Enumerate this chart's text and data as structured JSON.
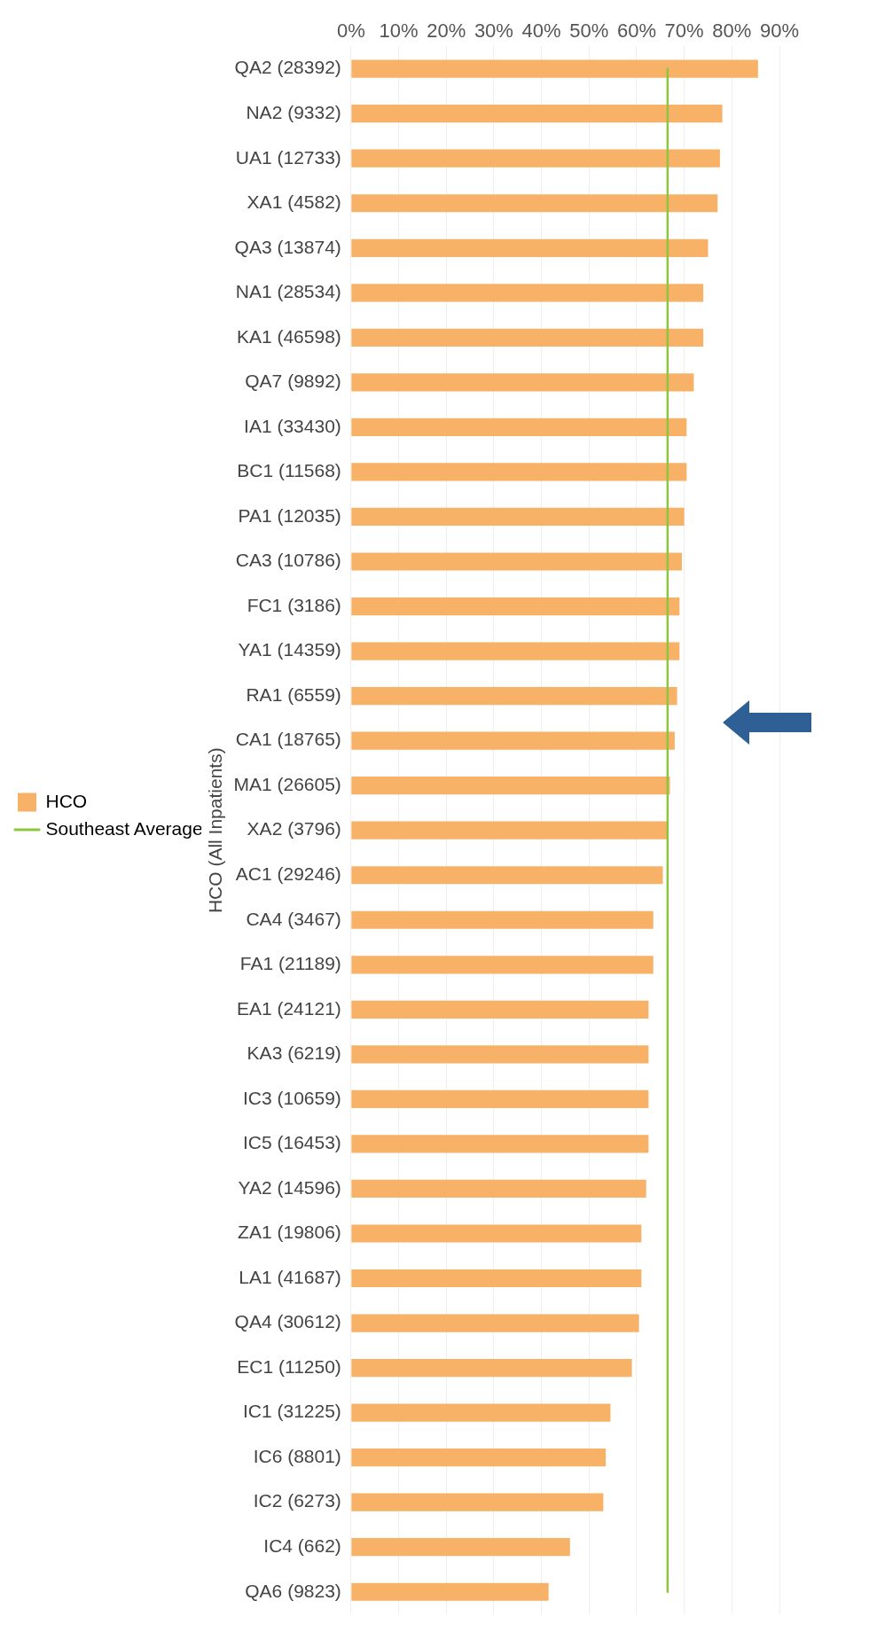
{
  "chart_data": {
    "type": "bar",
    "orientation": "horizontal",
    "ylabel": "HCO (All Inpatients)",
    "categories": [
      "QA2 (28392)",
      "NA2 (9332)",
      "UA1 (12733)",
      "XA1 (4582)",
      "QA3 (13874)",
      "NA1 (28534)",
      "KA1 (46598)",
      "QA7 (9892)",
      "IA1 (33430)",
      "BC1 (11568)",
      "PA1 (12035)",
      "CA3 (10786)",
      "FC1 (3186)",
      "YA1 (14359)",
      "RA1 (6559)",
      "CA1 (18765)",
      "MA1 (26605)",
      "XA2 (3796)",
      "AC1 (29246)",
      "CA4 (3467)",
      "FA1 (21189)",
      "EA1 (24121)",
      "KA3 (6219)",
      "IC3 (10659)",
      "IC5 (16453)",
      "YA2 (14596)",
      "ZA1 (19806)",
      "LA1 (41687)",
      "QA4 (30612)",
      "EC1 (11250)",
      "IC1 (31225)",
      "IC6 (8801)",
      "IC2 (6273)",
      "IC4 (662)",
      "QA6 (9823)"
    ],
    "series": [
      {
        "name": "HCO",
        "color": "#f7b267",
        "values": [
          85.5,
          78,
          77.5,
          77,
          75,
          74,
          74,
          72,
          70.5,
          70.5,
          70,
          69.5,
          69,
          69,
          68.5,
          68,
          67,
          66.5,
          65.5,
          63.5,
          63.5,
          62.5,
          62.5,
          62.5,
          62.5,
          62,
          61,
          61,
          60.5,
          59,
          54.5,
          53.5,
          53,
          46,
          41.5
        ]
      },
      {
        "name": "Southeast Average",
        "type": "line",
        "color": "#8cc63e",
        "values": [
          66.5,
          66.5,
          66.5,
          66.5,
          66.5,
          66.5,
          66.5,
          66.5,
          66.5,
          66.5,
          66.5,
          66.5,
          66.5,
          66.5,
          66.5,
          66.5,
          66.5,
          66.5,
          66.5,
          66.5,
          66.5,
          66.5,
          66.5,
          66.5,
          66.5,
          66.5,
          66.5,
          66.5,
          66.5,
          66.5,
          66.5,
          66.5,
          66.5,
          66.5,
          66.5
        ]
      }
    ],
    "xlim": [
      0,
      90
    ],
    "xticks": [
      {
        "value": 0,
        "label": "0%"
      },
      {
        "value": 10,
        "label": "10%"
      },
      {
        "value": 20,
        "label": "20%"
      },
      {
        "value": 30,
        "label": "30%"
      },
      {
        "value": 40,
        "label": "40%"
      },
      {
        "value": 50,
        "label": "50%"
      },
      {
        "value": 60,
        "label": "60%"
      },
      {
        "value": 70,
        "label": "70%"
      },
      {
        "value": 80,
        "label": "80%"
      },
      {
        "value": 90,
        "label": "90%"
      }
    ],
    "grid": "x",
    "legend": "left",
    "marker": "none"
  }
}
